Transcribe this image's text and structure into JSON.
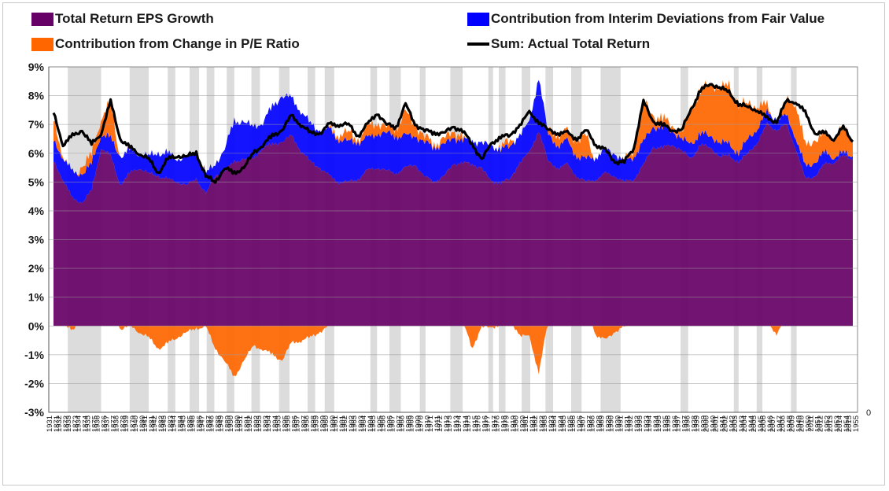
{
  "chart_data": {
    "type": "area",
    "title": "",
    "xlabel": "",
    "ylabel": "",
    "ylim": [
      -0.03,
      0.09
    ],
    "y_ticks": [
      "-3%",
      "-2%",
      "-1%",
      "0%",
      "1%",
      "2%",
      "3%",
      "4%",
      "5%",
      "6%",
      "7%",
      "8%",
      "9%"
    ],
    "y_tick_values": [
      -0.03,
      -0.02,
      -0.01,
      0,
      0.01,
      0.02,
      0.03,
      0.04,
      0.05,
      0.06,
      0.07,
      0.08,
      0.09
    ],
    "secondary_axis_label": "0",
    "grid": true,
    "legend_position": "top",
    "legend": [
      {
        "label": "Total Return EPS Growth",
        "color": "#660066",
        "kind": "area"
      },
      {
        "label": "Contribution from Interim Deviations from Fair Value",
        "color": "#0000ff",
        "kind": "area"
      },
      {
        "label": "Contribution from Change in P/E Ratio",
        "color": "#ff6600",
        "kind": "area"
      },
      {
        "label": "Sum: Actual Total Return",
        "color": "#000000",
        "kind": "line"
      }
    ],
    "x_labels": [
      [
        "1931",
        "1871"
      ],
      [
        "1932",
        "1872"
      ],
      [
        "1933",
        "1873"
      ],
      [
        "1934",
        "1874"
      ],
      [
        "1935",
        "1875"
      ],
      [
        "1936",
        "1876"
      ],
      [
        "1937",
        "1877"
      ],
      [
        "1938",
        "1878"
      ],
      [
        "1939",
        "1879"
      ],
      [
        "1940",
        "1880"
      ],
      [
        "1941",
        "1881"
      ],
      [
        "1942",
        "1882"
      ],
      [
        "1943",
        "1883"
      ],
      [
        "1944",
        "1884"
      ],
      [
        "1945",
        "1885"
      ],
      [
        "1946",
        "1886"
      ],
      [
        "1947",
        "1887"
      ],
      [
        "1948",
        "1888"
      ],
      [
        "1949",
        "1889"
      ],
      [
        "1950",
        "1890"
      ],
      [
        "1951",
        "1891"
      ],
      [
        "1952",
        "1892"
      ],
      [
        "1953",
        "1893"
      ],
      [
        "1954",
        "1894"
      ],
      [
        "1955",
        "1895"
      ],
      [
        "1956",
        "1896"
      ],
      [
        "1957",
        "1897"
      ],
      [
        "1958",
        "1898"
      ],
      [
        "1959",
        "1899"
      ],
      [
        "1960",
        "1900"
      ],
      [
        "1961",
        "1901"
      ],
      [
        "1962",
        "1902"
      ],
      [
        "1963",
        "1903"
      ],
      [
        "1964",
        "1904"
      ],
      [
        "1965",
        "1905"
      ],
      [
        "1966",
        "1906"
      ],
      [
        "1967",
        "1907"
      ],
      [
        "1968",
        "1908"
      ],
      [
        "1969",
        "1909"
      ],
      [
        "1970",
        "1910"
      ],
      [
        "1971",
        "1911"
      ],
      [
        "1972",
        "1912"
      ],
      [
        "1973",
        "1913"
      ],
      [
        "1974",
        "1914"
      ],
      [
        "1975",
        "1915"
      ],
      [
        "1976",
        "1916"
      ],
      [
        "1977",
        "1917"
      ],
      [
        "1978",
        "1918"
      ],
      [
        "1979",
        "1919"
      ],
      [
        "1980",
        "1920"
      ],
      [
        "1981",
        "1921"
      ],
      [
        "1982",
        "1922"
      ],
      [
        "1983",
        "1923"
      ],
      [
        "1984",
        "1924"
      ],
      [
        "1985",
        "1925"
      ],
      [
        "1986",
        "1926"
      ],
      [
        "1987",
        "1927"
      ],
      [
        "1988",
        "1928"
      ],
      [
        "1989",
        "1929"
      ],
      [
        "1990",
        "1930"
      ],
      [
        "1991",
        "1931"
      ],
      [
        "1992",
        "1932"
      ],
      [
        "1993",
        "1933"
      ],
      [
        "1994",
        "1934"
      ],
      [
        "1995",
        "1935"
      ],
      [
        "1996",
        "1936"
      ],
      [
        "1997",
        "1937"
      ],
      [
        "1998",
        "1938"
      ],
      [
        "1999",
        "1939"
      ],
      [
        "2000",
        "1940"
      ],
      [
        "2001",
        "1941"
      ],
      [
        "2002",
        "1942"
      ],
      [
        "2003",
        "1943"
      ],
      [
        "2004",
        "1944"
      ],
      [
        "2005",
        "1945"
      ],
      [
        "2006",
        "1946"
      ],
      [
        "2007",
        "1947"
      ],
      [
        "2008",
        "1948"
      ],
      [
        "2009",
        "1949"
      ],
      [
        "2010",
        "1950"
      ],
      [
        "2011",
        "1951"
      ],
      [
        "2012",
        "1952"
      ],
      [
        "2013",
        "1953"
      ],
      [
        "2014",
        "1954"
      ],
      [
        "2015",
        "1955"
      ]
    ],
    "recession_bands": [
      [
        2.0,
        5.5
      ],
      [
        8.5,
        10.5
      ],
      [
        12.5,
        13.3
      ],
      [
        14.8,
        15.8
      ],
      [
        16.6,
        17.4
      ],
      [
        18.7,
        19.5
      ],
      [
        21.3,
        22.2
      ],
      [
        24.2,
        25.3
      ],
      [
        27.2,
        28.0
      ],
      [
        29.0,
        30.0
      ],
      [
        33.8,
        34.5
      ],
      [
        35.8,
        37.0
      ],
      [
        39.0,
        39.6
      ],
      [
        42.2,
        43.5
      ],
      [
        46.2,
        46.7
      ],
      [
        47.3,
        48.0
      ],
      [
        49.7,
        50.6
      ],
      [
        52.2,
        53.0
      ],
      [
        54.9,
        56.0
      ],
      [
        58.0,
        60.1
      ],
      [
        66.4,
        67.2
      ],
      [
        72.0,
        72.5
      ],
      [
        74.4,
        75.0
      ],
      [
        78.0,
        78.6
      ]
    ],
    "series": [
      {
        "name": "Total Return EPS Growth",
        "values": [
          0.057,
          0.051,
          0.044,
          0.043,
          0.047,
          0.062,
          0.059,
          0.049,
          0.053,
          0.055,
          0.053,
          0.052,
          0.051,
          0.05,
          0.049,
          0.051,
          0.046,
          0.052,
          0.054,
          0.057,
          0.058,
          0.058,
          0.062,
          0.063,
          0.064,
          0.066,
          0.061,
          0.057,
          0.055,
          0.052,
          0.05,
          0.05,
          0.051,
          0.054,
          0.055,
          0.054,
          0.053,
          0.055,
          0.056,
          0.052,
          0.05,
          0.052,
          0.056,
          0.057,
          0.056,
          0.055,
          0.05,
          0.05,
          0.051,
          0.057,
          0.06,
          0.068,
          0.057,
          0.055,
          0.056,
          0.052,
          0.05,
          0.051,
          0.053,
          0.052,
          0.05,
          0.051,
          0.056,
          0.062,
          0.062,
          0.063,
          0.061,
          0.058,
          0.063,
          0.062,
          0.059,
          0.059,
          0.057,
          0.06,
          0.064,
          0.07,
          0.068,
          0.07,
          0.062,
          0.051,
          0.052,
          0.056,
          0.057,
          0.059,
          0.058
        ]
      },
      {
        "name": "Contribution from Interim Deviations from Fair Value",
        "values": [
          0.007,
          0.008,
          0.009,
          0.01,
          0.009,
          0.005,
          0.006,
          0.01,
          0.008,
          0.005,
          0.006,
          0.008,
          0.009,
          0.008,
          0.01,
          0.009,
          0.007,
          0.004,
          0.008,
          0.014,
          0.013,
          0.011,
          0.009,
          0.013,
          0.016,
          0.013,
          0.014,
          0.013,
          0.013,
          0.016,
          0.015,
          0.014,
          0.013,
          0.011,
          0.012,
          0.013,
          0.013,
          0.011,
          0.01,
          0.012,
          0.012,
          0.011,
          0.009,
          0.008,
          0.008,
          0.009,
          0.012,
          0.012,
          0.011,
          0.01,
          0.01,
          0.019,
          0.009,
          0.008,
          0.008,
          0.007,
          0.008,
          0.008,
          0.008,
          0.008,
          0.007,
          0.008,
          0.008,
          0.007,
          0.007,
          0.005,
          0.004,
          0.005,
          0.004,
          0.004,
          0.005,
          0.004,
          0.003,
          0.005,
          0.005,
          0.004,
          0.004,
          0.003,
          0.004,
          0.004,
          0.005,
          0.004,
          0.002,
          0.001,
          0.001
        ]
      },
      {
        "name": "Contribution from Change in P/E Ratio",
        "values": [
          0.007,
          0.001,
          -0.002,
          0.003,
          0.003,
          0.006,
          0.012,
          -0.001,
          0.0,
          -0.002,
          -0.004,
          -0.008,
          -0.006,
          -0.004,
          -0.002,
          -0.001,
          0.0,
          -0.008,
          -0.012,
          -0.018,
          -0.012,
          -0.007,
          -0.008,
          -0.01,
          -0.012,
          -0.006,
          -0.005,
          -0.004,
          -0.002,
          0.0,
          0.002,
          0.003,
          0.001,
          0.004,
          0.004,
          0.002,
          0.003,
          0.008,
          0.004,
          0.002,
          0.001,
          0.002,
          0.002,
          0.002,
          -0.008,
          0.0,
          -0.001,
          0.001,
          0.002,
          -0.003,
          -0.004,
          -0.016,
          0.002,
          0.004,
          0.003,
          0.006,
          0.008,
          -0.003,
          -0.005,
          -0.002,
          0.0,
          0.003,
          0.014,
          0.004,
          0.003,
          0.002,
          0.002,
          0.012,
          0.015,
          0.018,
          0.019,
          0.02,
          0.017,
          0.012,
          0.008,
          0.002,
          -0.003,
          0.005,
          0.012,
          0.007,
          0.008,
          0.006,
          0.007,
          0.008,
          0.006
        ]
      },
      {
        "name": "Sum: Actual Total Return",
        "values": [
          0.074,
          0.063,
          0.066,
          0.068,
          0.063,
          0.067,
          0.078,
          0.065,
          0.062,
          0.06,
          0.058,
          0.053,
          0.058,
          0.059,
          0.059,
          0.06,
          0.052,
          0.05,
          0.055,
          0.053,
          0.055,
          0.06,
          0.063,
          0.066,
          0.068,
          0.073,
          0.07,
          0.067,
          0.067,
          0.07,
          0.07,
          0.07,
          0.066,
          0.07,
          0.074,
          0.07,
          0.069,
          0.077,
          0.07,
          0.068,
          0.067,
          0.067,
          0.069,
          0.068,
          0.063,
          0.058,
          0.063,
          0.066,
          0.066,
          0.07,
          0.074,
          0.071,
          0.068,
          0.067,
          0.067,
          0.065,
          0.068,
          0.063,
          0.061,
          0.057,
          0.057,
          0.062,
          0.078,
          0.071,
          0.07,
          0.068,
          0.068,
          0.075,
          0.082,
          0.084,
          0.083,
          0.081,
          0.077,
          0.076,
          0.075,
          0.072,
          0.071,
          0.078,
          0.078,
          0.074,
          0.067,
          0.067,
          0.065,
          0.069,
          0.064
        ]
      }
    ]
  }
}
